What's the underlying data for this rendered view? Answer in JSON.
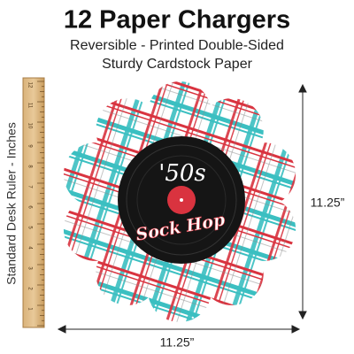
{
  "header": {
    "title": "12 Paper Chargers",
    "subtitle_lines": [
      "Reversible - Printed Double-Sided",
      "Sturdy Cardstock Paper"
    ]
  },
  "ruler": {
    "label": "Standard Desk Ruler - Inches",
    "numbers": [
      "1",
      "2",
      "3",
      "4",
      "5",
      "6",
      "7",
      "8",
      "9",
      "10",
      "11",
      "12"
    ]
  },
  "charger": {
    "record_top": "'50s",
    "record_bottom": "Sock Hop"
  },
  "dimensions": {
    "height": "11.25”",
    "width": "11.25”"
  }
}
